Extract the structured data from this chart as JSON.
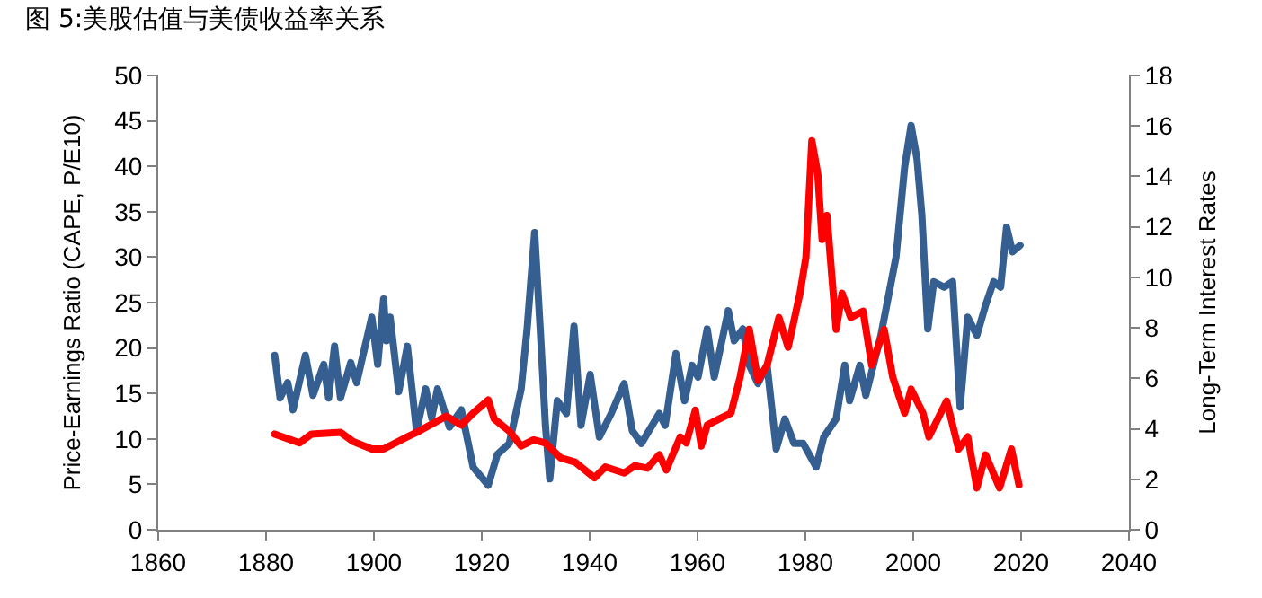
{
  "chart_data": {
    "type": "line",
    "title": "图 5:美股估值与美债收益率关系",
    "ylabel": "Price-Earnings Ratio (CAPE, P/E10)",
    "y2label": "Long-Term Interest Rates",
    "xlim": [
      1860,
      2040
    ],
    "xticks": [
      1860,
      1880,
      1900,
      1920,
      1940,
      1960,
      1980,
      2000,
      2020,
      2040
    ],
    "ylim": [
      0,
      50
    ],
    "yticks": [
      0,
      5,
      10,
      15,
      20,
      25,
      30,
      35,
      40,
      45,
      50
    ],
    "y2lim": [
      0,
      18
    ],
    "y2ticks": [
      0,
      2,
      4,
      6,
      8,
      10,
      12,
      14,
      16,
      18
    ],
    "marker": "none",
    "line_style": "solid",
    "series": [
      {
        "color": "#365f91",
        "axis": "y",
        "x": [
          1881.6,
          1882.6,
          1884,
          1885,
          1887.3,
          1888.7,
          1890.7,
          1891.6,
          1892.7,
          1893.8,
          1895.7,
          1896.8,
          1898.2,
          1899.6,
          1900.7,
          1901.8,
          1902.3,
          1903,
          1904.6,
          1906.2,
          1907.9,
          1909.6,
          1910.7,
          1911.8,
          1914,
          1916.2,
          1918.4,
          1921.2,
          1922.9,
          1925.1,
          1927.3,
          1928.4,
          1929.8,
          1930.9,
          1931.8,
          1932.6,
          1934,
          1935.7,
          1937.1,
          1938.4,
          1940.1,
          1941.8,
          1944,
          1946.4,
          1947.9,
          1949.6,
          1952.9,
          1954,
          1956,
          1957.6,
          1959,
          1960.1,
          1961.8,
          1963.1,
          1965.7,
          1966.8,
          1968.4,
          1969.6,
          1971.2,
          1972.9,
          1974.6,
          1976.2,
          1977.9,
          1979.6,
          1982,
          1983.4,
          1985.7,
          1987.3,
          1988.2,
          1990.1,
          1991.2,
          1994,
          1996.8,
          1998.4,
          1999.6,
          2000.7,
          2001.6,
          2002.7,
          2003.8,
          2005.7,
          2007.3,
          2008.7,
          2010.1,
          2011.8,
          2013.4,
          2014.9,
          2016.2,
          2017.3,
          2018.4,
          2019.8
        ],
        "values": [
          19.2,
          14.5,
          16.2,
          13.2,
          19.2,
          14.8,
          18.2,
          14.5,
          20.2,
          14.5,
          18.4,
          16.2,
          19.8,
          23.4,
          18.2,
          25.4,
          20.8,
          23.4,
          15.2,
          20.2,
          10.9,
          15.5,
          12.3,
          15.5,
          11.3,
          13.2,
          6.9,
          4.9,
          8.3,
          9.5,
          15.5,
          22.1,
          32.7,
          21.4,
          11.5,
          5.6,
          14.2,
          12.8,
          22.4,
          11.5,
          17.1,
          10.2,
          12.8,
          16.1,
          10.9,
          9.5,
          12.8,
          11.5,
          19.4,
          14.2,
          18.1,
          16.8,
          22.1,
          16.8,
          24.1,
          20.8,
          22.1,
          18.1,
          16.1,
          18.1,
          8.9,
          12.2,
          9.5,
          9.5,
          6.9,
          10.2,
          12.2,
          18.1,
          14.2,
          18.1,
          14.8,
          21.4,
          30,
          39.9,
          44.5,
          40.8,
          34.6,
          22.1,
          27.3,
          26.7,
          27.3,
          13.5,
          23.4,
          21.4,
          24.7,
          27.3,
          26.7,
          33.3,
          30.6,
          31.3
        ]
      },
      {
        "color": "#ff0000",
        "axis": "y2",
        "x": [
          1881.6,
          1886.2,
          1888.4,
          1893.8,
          1896.2,
          1899.6,
          1901.8,
          1906.2,
          1908.4,
          1913.4,
          1916.2,
          1918.4,
          1921.2,
          1922.3,
          1925.1,
          1927.3,
          1929.6,
          1931.8,
          1934.6,
          1937.3,
          1940.9,
          1942.9,
          1946.4,
          1948.4,
          1950.7,
          1952.9,
          1954.2,
          1956.8,
          1957.9,
          1959.6,
          1960.7,
          1961.8,
          1964,
          1966.2,
          1967.9,
          1969.6,
          1971.2,
          1972.9,
          1975.1,
          1976.8,
          1979,
          1980.1,
          1981.2,
          1982.3,
          1983.1,
          1984,
          1985.7,
          1986.8,
          1988.4,
          1990.7,
          1992.3,
          1994.6,
          1996.2,
          1998.4,
          1999.6,
          2001.8,
          2002.9,
          2006.2,
          2008.4,
          2010.1,
          2011.8,
          2013.4,
          2016,
          2018.2,
          2019.6
        ],
        "values": [
          3.79,
          3.44,
          3.79,
          3.86,
          3.49,
          3.2,
          3.2,
          3.68,
          3.91,
          4.5,
          4.15,
          4.62,
          5.14,
          4.39,
          3.91,
          3.32,
          3.56,
          3.44,
          2.85,
          2.68,
          2.06,
          2.49,
          2.25,
          2.54,
          2.44,
          2.97,
          2.37,
          3.68,
          3.44,
          4.74,
          3.32,
          4.15,
          4.39,
          4.62,
          6.05,
          7.94,
          5.92,
          6.52,
          8.41,
          7.23,
          9.37,
          10.79,
          15.41,
          14.1,
          11.5,
          12.45,
          7.94,
          9.37,
          8.41,
          8.66,
          6.52,
          7.94,
          6.05,
          4.62,
          5.57,
          4.62,
          3.68,
          5.1,
          3.2,
          3.68,
          1.66,
          2.97,
          1.66,
          3.2,
          1.78
        ]
      }
    ]
  }
}
